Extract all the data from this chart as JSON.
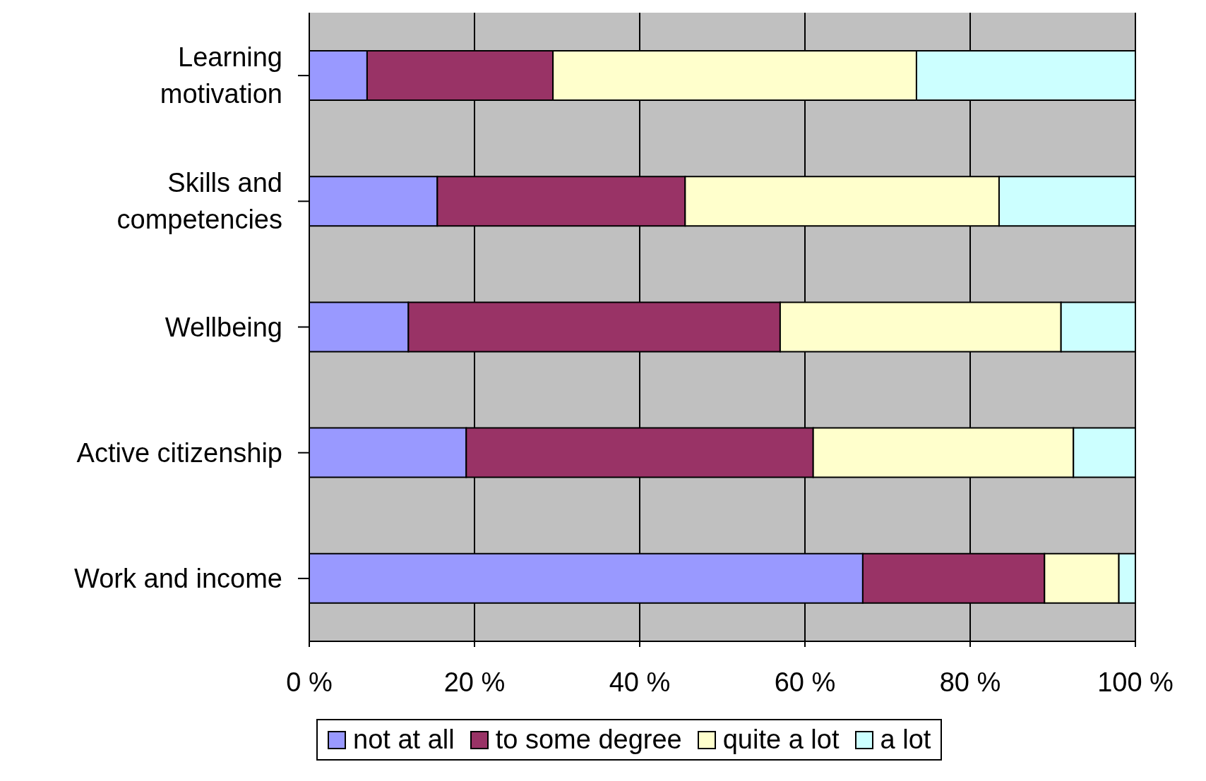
{
  "chart_data": {
    "type": "bar",
    "orientation": "horizontal",
    "stacked": true,
    "categories": [
      "Learning motivation",
      "Skills and competencies",
      "Wellbeing",
      "Active citizenship",
      "Work and income"
    ],
    "series": [
      {
        "name": "not at all",
        "color": "#9999ff",
        "values": [
          7,
          15.5,
          12,
          19,
          67
        ]
      },
      {
        "name": "to some degree",
        "color": "#993366",
        "values": [
          22.5,
          30,
          45,
          42,
          22
        ]
      },
      {
        "name": "quite a lot",
        "color": "#ffffcc",
        "values": [
          44,
          38,
          34,
          31.5,
          9
        ]
      },
      {
        "name": "a lot",
        "color": "#ccffff",
        "values": [
          26.5,
          16.5,
          9,
          7.5,
          2
        ]
      }
    ],
    "xlim": [
      0,
      100
    ],
    "xticks": [
      {
        "value": 0,
        "label": "0 %"
      },
      {
        "value": 20,
        "label": "20 %"
      },
      {
        "value": 40,
        "label": "40 %"
      },
      {
        "value": 60,
        "label": "60 %"
      },
      {
        "value": 80,
        "label": "80 %"
      },
      {
        "value": 100,
        "label": "100 %"
      }
    ],
    "grid": "x",
    "legend": "bottom"
  }
}
